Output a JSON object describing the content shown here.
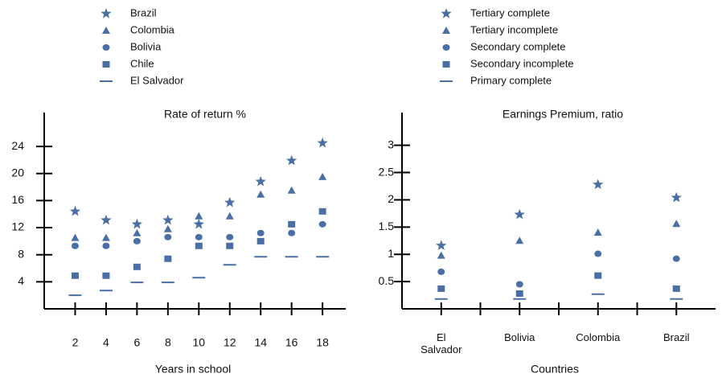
{
  "chart_data": [
    {
      "type": "scatter",
      "title": "Rate of return %",
      "x_label": "Years in school",
      "x": [
        2,
        4,
        6,
        8,
        10,
        12,
        14,
        16,
        18
      ],
      "xlim": [
        0,
        19.5
      ],
      "xticks": [
        2,
        4,
        6,
        8,
        10,
        12,
        14,
        16,
        18
      ],
      "ylim": [
        0,
        29
      ],
      "yticks": [
        4,
        8,
        12,
        16,
        20,
        24
      ],
      "grid": false,
      "series": [
        {
          "name": "Brazil",
          "marker": "star",
          "color": "#4a6fa5",
          "values": [
            14.4,
            13.1,
            12.5,
            13.1,
            12.5,
            15.7,
            18.8,
            21.9,
            24.5
          ]
        },
        {
          "name": "Colombia",
          "marker": "triangle",
          "color": "#4a6fa5",
          "values": [
            10.5,
            10.5,
            11.2,
            11.8,
            13.7,
            13.7,
            16.9,
            17.5,
            19.5
          ]
        },
        {
          "name": "Bolivia",
          "marker": "circle",
          "color": "#4a6fa5",
          "values": [
            9.3,
            9.3,
            10.0,
            10.6,
            10.6,
            10.6,
            11.2,
            11.2,
            12.5
          ]
        },
        {
          "name": "Chile",
          "marker": "square",
          "color": "#4a6fa5",
          "values": [
            4.9,
            4.9,
            6.2,
            7.4,
            9.3,
            9.3,
            10.0,
            12.5,
            14.4
          ]
        },
        {
          "name": "El Salvador",
          "marker": "dash",
          "color": "#4a6fa5",
          "values": [
            2.0,
            2.7,
            3.9,
            3.9,
            4.6,
            6.5,
            7.7,
            7.7,
            7.7
          ]
        }
      ]
    },
    {
      "type": "category-scatter",
      "title": "Earnings Premium, ratio",
      "x_label": "Countries",
      "categories": [
        "El Salvador",
        "Bolivia",
        "Colombia",
        "Brazil"
      ],
      "ylim": [
        0,
        3.6
      ],
      "yticks": [
        0.5,
        1,
        1.5,
        2,
        2.5,
        3
      ],
      "grid": false,
      "series": [
        {
          "name": "Tertiary complete",
          "marker": "star",
          "color": "#4a6fa5",
          "values": [
            1.16,
            1.73,
            2.28,
            2.04
          ]
        },
        {
          "name": "Tertiary incomplete",
          "marker": "triangle",
          "color": "#4a6fa5",
          "values": [
            0.98,
            1.25,
            1.4,
            1.56
          ]
        },
        {
          "name": "Secondary complete",
          "marker": "circle",
          "color": "#4a6fa5",
          "values": [
            0.68,
            0.45,
            1.01,
            0.92
          ]
        },
        {
          "name": "Secondary incomplete",
          "marker": "square",
          "color": "#4a6fa5",
          "values": [
            0.37,
            0.28,
            0.61,
            0.37
          ]
        },
        {
          "name": "Primary complete",
          "marker": "dash",
          "color": "#4a6fa5",
          "values": [
            0.18,
            0.18,
            0.27,
            0.18
          ]
        }
      ]
    }
  ]
}
